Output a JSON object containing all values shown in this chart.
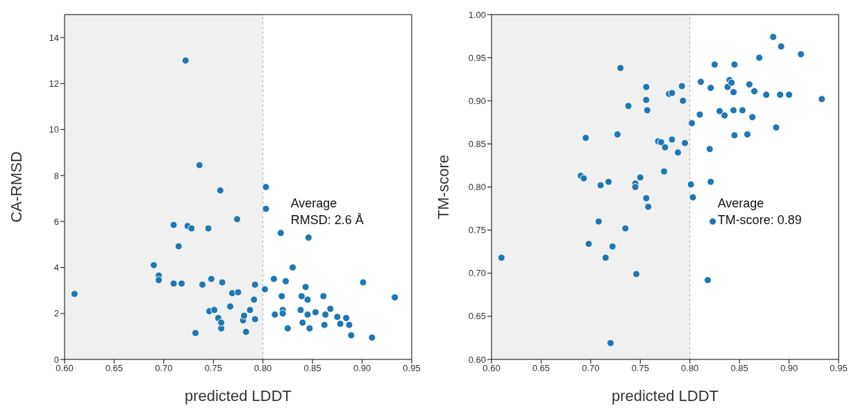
{
  "chart_data": [
    {
      "type": "scatter",
      "xlabel": "predicted LDDT",
      "ylabel": "CA-RMSD",
      "color": "#1f77b4",
      "marker": "circle",
      "x": [
        0.61,
        0.69,
        0.695,
        0.695,
        0.71,
        0.71,
        0.715,
        0.718,
        0.722,
        0.724,
        0.728,
        0.732,
        0.736,
        0.739,
        0.745,
        0.746,
        0.748,
        0.751,
        0.757,
        0.755,
        0.758,
        0.758,
        0.759,
        0.767,
        0.769,
        0.774,
        0.775,
        0.78,
        0.781,
        0.783,
        0.787,
        0.791,
        0.792,
        0.792,
        0.802,
        0.803,
        0.803,
        0.811,
        0.812,
        0.818,
        0.819,
        0.82,
        0.82,
        0.823,
        0.825,
        0.83,
        0.838,
        0.839,
        0.84,
        0.843,
        0.845,
        0.846,
        0.845,
        0.847,
        0.853,
        0.861,
        0.862,
        0.863,
        0.868,
        0.875,
        0.878,
        0.884,
        0.887,
        0.889,
        0.901,
        0.91,
        0.933
      ],
      "values": [
        2.85,
        4.1,
        3.65,
        3.45,
        5.85,
        3.3,
        4.92,
        3.3,
        13.0,
        5.8,
        5.7,
        1.15,
        8.45,
        3.25,
        5.7,
        2.1,
        3.5,
        2.15,
        7.35,
        1.8,
        1.35,
        1.6,
        3.35,
        2.3,
        2.88,
        6.1,
        2.92,
        1.7,
        1.9,
        1.2,
        2.15,
        2.6,
        3.25,
        1.75,
        3.05,
        7.5,
        6.55,
        3.5,
        1.95,
        5.5,
        2.75,
        2.15,
        2.0,
        3.4,
        1.35,
        4.0,
        2.15,
        2.75,
        1.6,
        3.15,
        1.95,
        5.3,
        2.6,
        1.35,
        2.05,
        2.75,
        1.5,
        1.95,
        2.2,
        1.85,
        1.55,
        1.8,
        1.5,
        1.05,
        3.35,
        0.95,
        2.7
      ],
      "xlim": [
        0.6,
        0.95
      ],
      "xticks": [
        {
          "value": 0.6,
          "label": "0.60"
        },
        {
          "value": 0.65,
          "label": "0.65"
        },
        {
          "value": 0.7,
          "label": "0.70"
        },
        {
          "value": 0.75,
          "label": "0.75"
        },
        {
          "value": 0.8,
          "label": "0.80"
        },
        {
          "value": 0.85,
          "label": "0.85"
        },
        {
          "value": 0.9,
          "label": "0.90"
        },
        {
          "value": 0.95,
          "label": "0.95"
        }
      ],
      "ylim": [
        0,
        15
      ],
      "yticks": [
        0,
        2,
        4,
        6,
        8,
        10,
        12,
        14
      ],
      "bands": [
        {
          "axis": "x",
          "from": 0.6,
          "to": 0.8,
          "color": "#f0f0f0"
        }
      ],
      "ref_lines": [
        {
          "axis": "x",
          "value": 0.8,
          "color": "#b0b0b0",
          "line_style": "dashed"
        }
      ],
      "annotations": [
        "Average\nRMSD: 2.6 Å"
      ]
    },
    {
      "type": "scatter",
      "xlabel": "predicted LDDT",
      "ylabel": "TM-score",
      "color": "#1f77b4",
      "marker": "circle",
      "x": [
        0.61,
        0.69,
        0.693,
        0.695,
        0.698,
        0.708,
        0.71,
        0.715,
        0.718,
        0.72,
        0.722,
        0.727,
        0.73,
        0.735,
        0.738,
        0.745,
        0.745,
        0.746,
        0.75,
        0.756,
        0.756,
        0.757,
        0.756,
        0.758,
        0.768,
        0.771,
        0.775,
        0.774,
        0.779,
        0.782,
        0.782,
        0.788,
        0.792,
        0.793,
        0.795,
        0.801,
        0.802,
        0.803,
        0.81,
        0.811,
        0.818,
        0.82,
        0.821,
        0.821,
        0.823,
        0.825,
        0.83,
        0.835,
        0.838,
        0.84,
        0.842,
        0.844,
        0.845,
        0.844,
        0.845,
        0.853,
        0.858,
        0.86,
        0.863,
        0.865,
        0.87,
        0.877,
        0.884,
        0.887,
        0.892,
        0.891,
        0.9,
        0.912,
        0.933
      ],
      "values": [
        0.718,
        0.813,
        0.81,
        0.857,
        0.734,
        0.76,
        0.802,
        0.718,
        0.806,
        0.619,
        0.731,
        0.861,
        0.938,
        0.752,
        0.894,
        0.804,
        0.8,
        0.699,
        0.811,
        0.916,
        0.901,
        0.889,
        0.787,
        0.777,
        0.853,
        0.852,
        0.846,
        0.818,
        0.908,
        0.909,
        0.855,
        0.84,
        0.917,
        0.9,
        0.851,
        0.803,
        0.874,
        0.788,
        0.884,
        0.922,
        0.692,
        0.844,
        0.915,
        0.806,
        0.76,
        0.942,
        0.888,
        0.883,
        0.916,
        0.924,
        0.921,
        0.91,
        0.942,
        0.889,
        0.86,
        0.889,
        0.861,
        0.919,
        0.881,
        0.911,
        0.95,
        0.907,
        0.974,
        0.869,
        0.963,
        0.907,
        0.907,
        0.954,
        0.902
      ],
      "xlim": [
        0.6,
        0.95
      ],
      "xticks": [
        {
          "value": 0.6,
          "label": "0.60"
        },
        {
          "value": 0.65,
          "label": "0.65"
        },
        {
          "value": 0.7,
          "label": "0.70"
        },
        {
          "value": 0.75,
          "label": "0.75"
        },
        {
          "value": 0.8,
          "label": "0.80"
        },
        {
          "value": 0.85,
          "label": "0.85"
        },
        {
          "value": 0.9,
          "label": "0.90"
        },
        {
          "value": 0.95,
          "label": "0.95"
        }
      ],
      "ylim": [
        0.6,
        1.0
      ],
      "yticks": [
        {
          "value": 0.6,
          "label": "0.60"
        },
        {
          "value": 0.65,
          "label": "0.65"
        },
        {
          "value": 0.7,
          "label": "0.70"
        },
        {
          "value": 0.75,
          "label": "0.75"
        },
        {
          "value": 0.8,
          "label": "0.80"
        },
        {
          "value": 0.85,
          "label": "0.85"
        },
        {
          "value": 0.9,
          "label": "0.90"
        },
        {
          "value": 0.95,
          "label": "0.95"
        },
        {
          "value": 1.0,
          "label": "1.00"
        }
      ],
      "bands": [
        {
          "axis": "x",
          "from": 0.6,
          "to": 0.8,
          "color": "#f0f0f0"
        }
      ],
      "ref_lines": [
        {
          "axis": "x",
          "value": 0.8,
          "color": "#b0b0b0",
          "line_style": "dashed"
        }
      ],
      "annotations": [
        "Average\nTM-score: 0.89"
      ]
    }
  ]
}
